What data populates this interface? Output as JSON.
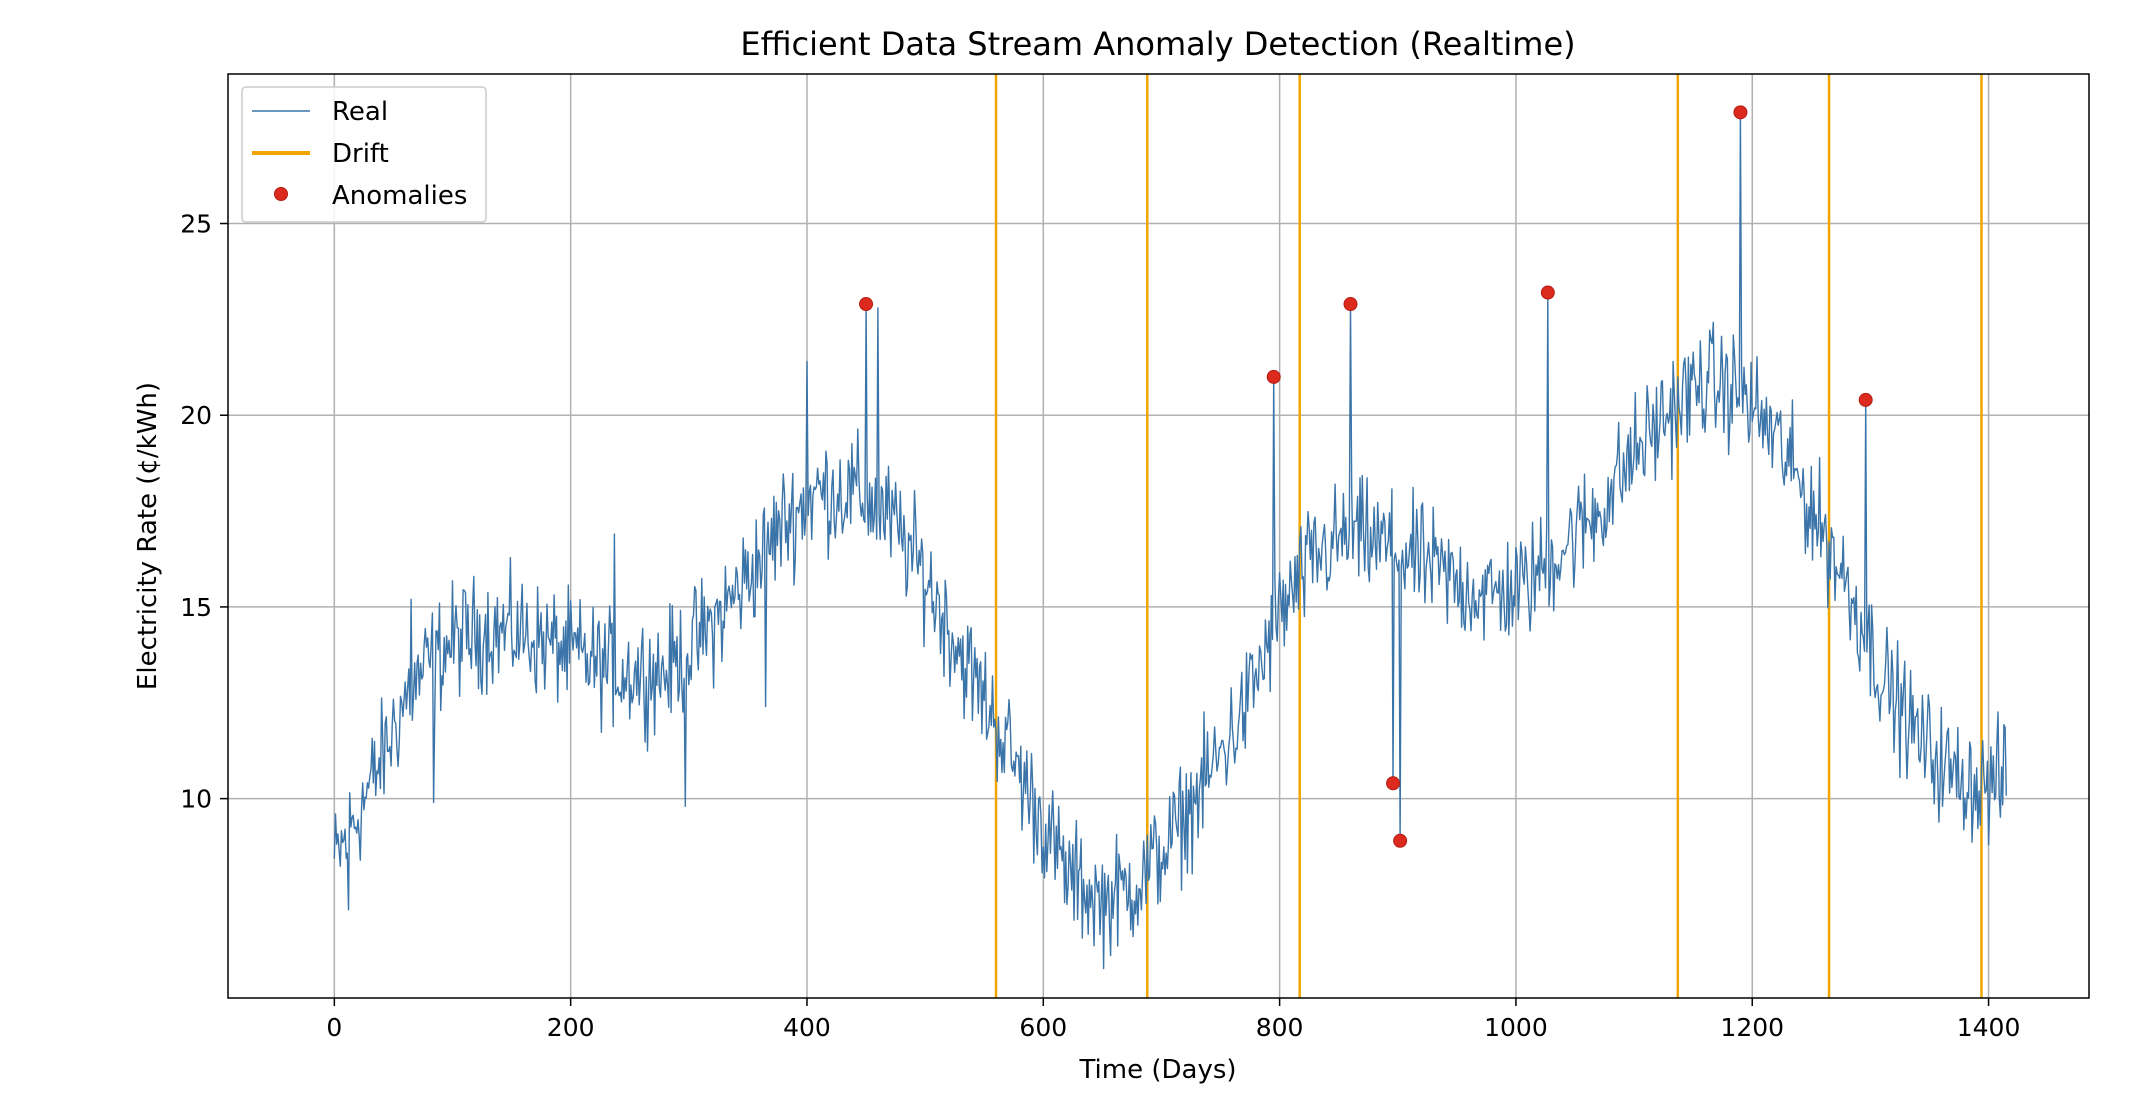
{
  "chart_data": {
    "type": "line",
    "title": "Efficient Data Stream Anomaly Detection (Realtime)",
    "xlabel": "Time (Days)",
    "ylabel": "Electricity Rate (¢/kWh)",
    "xlim": [
      -90,
      1485
    ],
    "ylim": [
      4.8,
      28.9
    ],
    "xticks": [
      0,
      200,
      400,
      600,
      800,
      1000,
      1200,
      1400
    ],
    "yticks": [
      10,
      15,
      20,
      25
    ],
    "grid": true,
    "legend_position": "top-left",
    "colors": {
      "real": "#3a74a8",
      "drift": "#f0a500",
      "anomaly": "#dd2a1e",
      "grid": "#b0b0b0"
    },
    "legend": [
      {
        "label": "Real",
        "kind": "line"
      },
      {
        "label": "Drift",
        "kind": "drift"
      },
      {
        "label": "Anomalies",
        "kind": "marker"
      }
    ],
    "series": [
      {
        "name": "Real",
        "kind": "line",
        "x_start": 0,
        "x_end": 1415,
        "control_points": [
          [
            0,
            8.3
          ],
          [
            20,
            9.6
          ],
          [
            40,
            11.0
          ],
          [
            60,
            12.6
          ],
          [
            80,
            13.5
          ],
          [
            100,
            14.1
          ],
          [
            130,
            14.4
          ],
          [
            160,
            14.3
          ],
          [
            200,
            13.8
          ],
          [
            240,
            13.3
          ],
          [
            280,
            13.3
          ],
          [
            320,
            14.5
          ],
          [
            350,
            15.8
          ],
          [
            380,
            17.2
          ],
          [
            410,
            18.0
          ],
          [
            440,
            18.0
          ],
          [
            470,
            17.3
          ],
          [
            500,
            15.8
          ],
          [
            530,
            13.8
          ],
          [
            560,
            12.0
          ],
          [
            590,
            10.0
          ],
          [
            620,
            8.0
          ],
          [
            650,
            7.3
          ],
          [
            680,
            7.8
          ],
          [
            710,
            9.0
          ],
          [
            740,
            10.6
          ],
          [
            770,
            12.3
          ],
          [
            800,
            14.8
          ],
          [
            830,
            16.3
          ],
          [
            860,
            16.9
          ],
          [
            890,
            16.6
          ],
          [
            920,
            16.2
          ],
          [
            950,
            15.6
          ],
          [
            980,
            15.3
          ],
          [
            1010,
            15.6
          ],
          [
            1040,
            16.6
          ],
          [
            1070,
            17.5
          ],
          [
            1100,
            19.0
          ],
          [
            1130,
            20.1
          ],
          [
            1160,
            20.9
          ],
          [
            1190,
            20.6
          ],
          [
            1220,
            19.4
          ],
          [
            1250,
            17.6
          ],
          [
            1280,
            15.6
          ],
          [
            1310,
            13.2
          ],
          [
            1340,
            11.6
          ],
          [
            1370,
            10.6
          ],
          [
            1400,
            10.3
          ],
          [
            1415,
            10.6
          ]
        ],
        "spikes": [
          {
            "x": 400,
            "y": 21.4
          },
          {
            "x": 450,
            "y": 22.9
          },
          {
            "x": 460,
            "y": 22.8
          },
          {
            "x": 65,
            "y": 15.2
          },
          {
            "x": 237,
            "y": 16.9
          },
          {
            "x": 84,
            "y": 9.9
          },
          {
            "x": 297,
            "y": 9.8
          },
          {
            "x": 365,
            "y": 12.4
          },
          {
            "x": 12,
            "y": 7.1
          },
          {
            "x": 795,
            "y": 21.0
          },
          {
            "x": 860,
            "y": 22.9
          },
          {
            "x": 896,
            "y": 10.4
          },
          {
            "x": 902,
            "y": 8.9
          },
          {
            "x": 1027,
            "y": 23.2
          },
          {
            "x": 1190,
            "y": 27.9
          },
          {
            "x": 1296,
            "y": 20.4
          }
        ]
      },
      {
        "name": "Drift",
        "kind": "vlines",
        "x": [
          560,
          688,
          817,
          1137,
          1265,
          1394
        ]
      },
      {
        "name": "Anomalies",
        "kind": "scatter",
        "points": [
          {
            "x": 450,
            "y": 22.9
          },
          {
            "x": 795,
            "y": 21.0
          },
          {
            "x": 860,
            "y": 22.9
          },
          {
            "x": 896,
            "y": 10.4
          },
          {
            "x": 902,
            "y": 8.9
          },
          {
            "x": 1027,
            "y": 23.2
          },
          {
            "x": 1190,
            "y": 27.9
          },
          {
            "x": 1296,
            "y": 20.4
          }
        ]
      }
    ]
  }
}
